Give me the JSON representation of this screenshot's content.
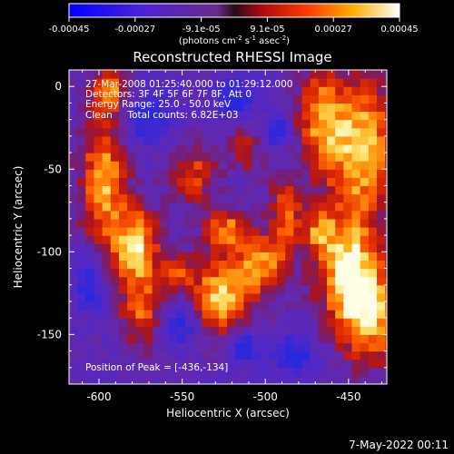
{
  "colorbar": {
    "ticks": [
      "-0.00045",
      "-0.00027",
      "-9.1e-05",
      "9.1e-05",
      "0.00027",
      "0.00045"
    ],
    "units_label": "(photons cm",
    "units_exp1": "-2",
    "units_mid": " s",
    "units_exp2": "-1",
    "units_end": " asec",
    "units_exp3": "-2",
    "units_close": ")"
  },
  "info": {
    "time_range": "27-Mar-2008 01:25:40.000 to 01:29:12.000",
    "detectors": "Detectors: 3F 4F 5F 6F 7F 8F, Att 0",
    "energy": "Energy Range: 25.0 - 50.0 keV",
    "clean": "Clean     Total counts: 6.82E+03",
    "peak": "Position of Peak = [-436,-134]"
  },
  "footer_date": "7-May-2022 00:11",
  "chart_data": {
    "type": "heatmap",
    "title": "Reconstructed RHESSI Image",
    "xlabel": "Heliocentric X (arcsec)",
    "ylabel": "Heliocentric Y (arcsec)",
    "xlim": [
      -618,
      -427
    ],
    "ylim": [
      -180,
      10
    ],
    "xticks": [
      -600,
      -550,
      -500,
      -450
    ],
    "yticks": [
      -150,
      -100,
      -50,
      0
    ],
    "colorbar_range": [
      -0.00045,
      0.00045
    ],
    "peak_position": [
      -436,
      -134
    ],
    "colormap": "blue-purple-red-yellow-white"
  }
}
